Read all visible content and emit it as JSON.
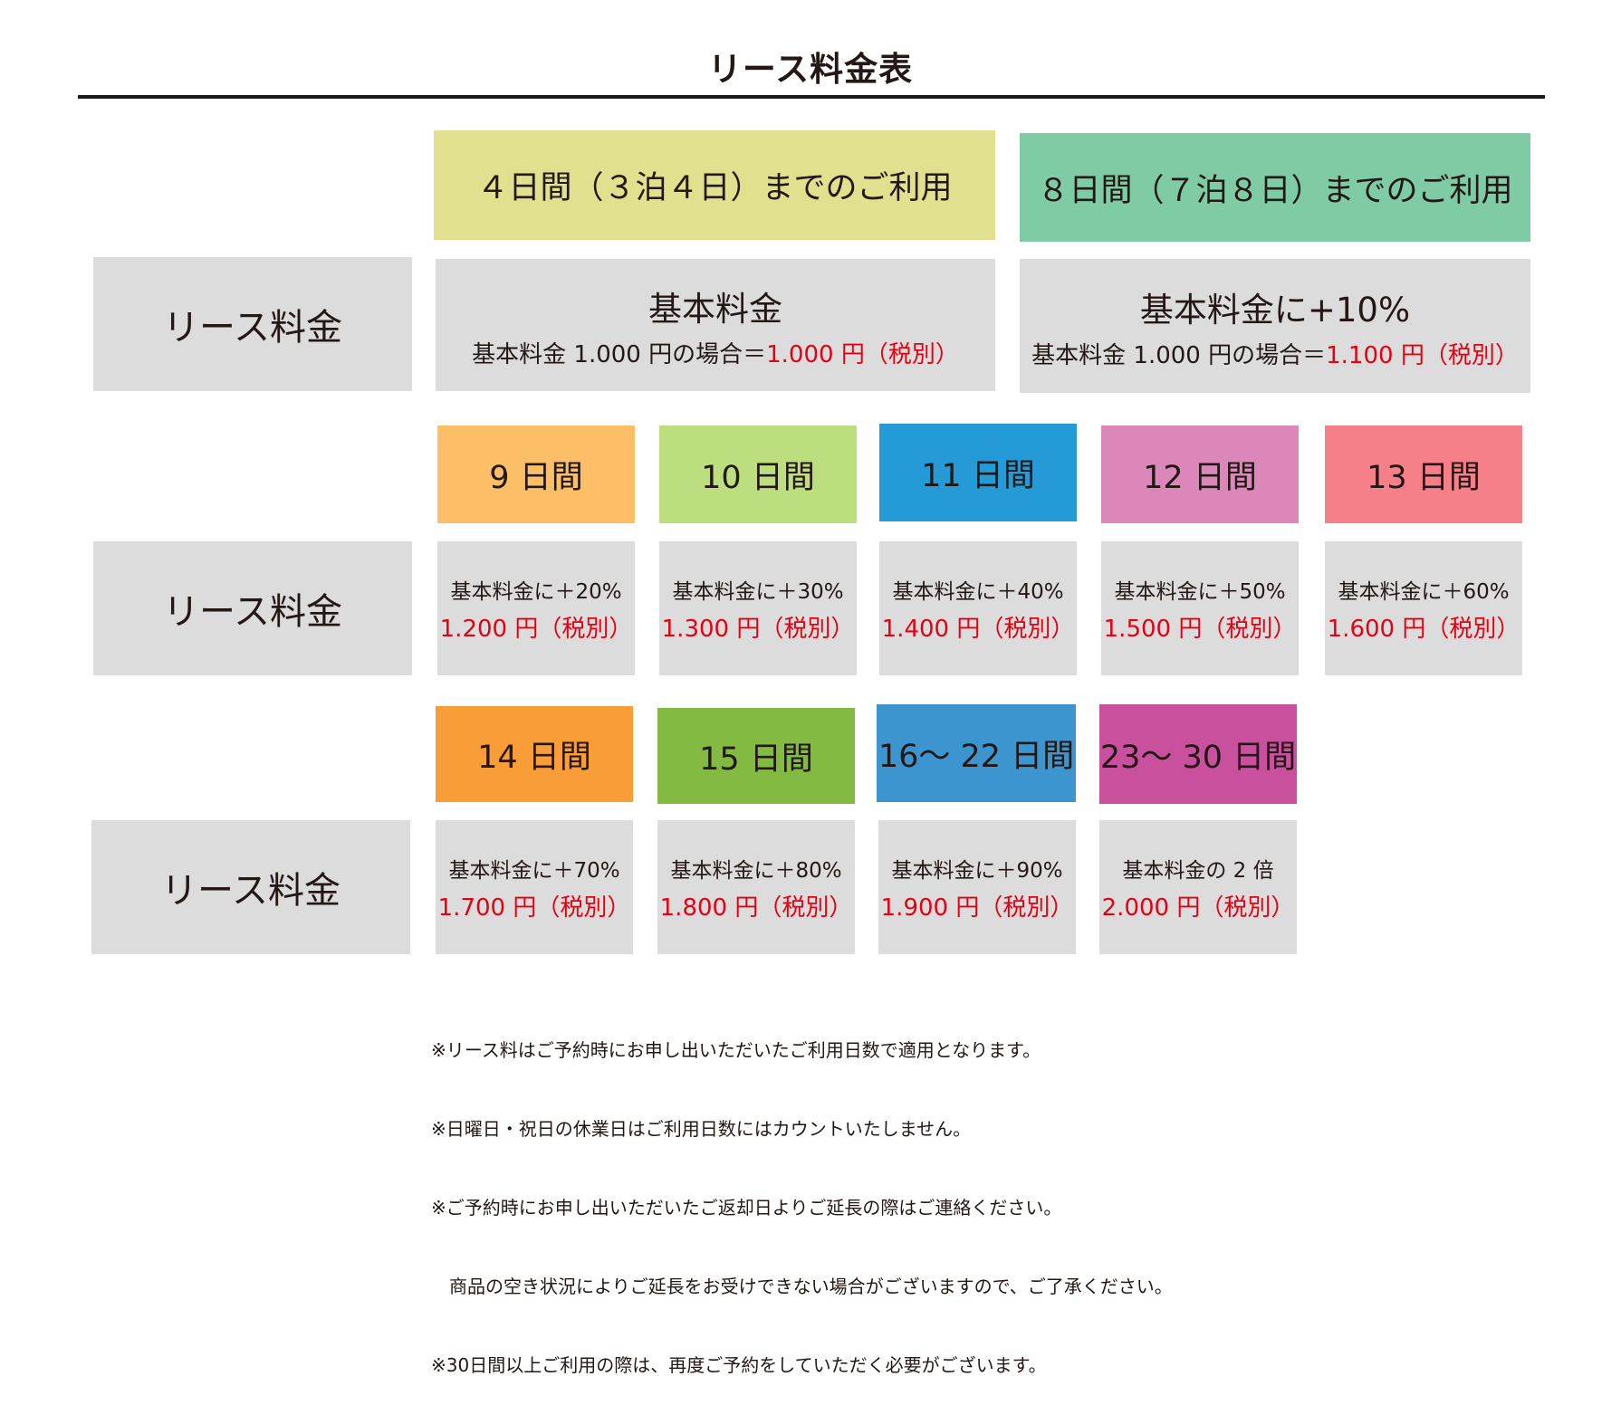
{
  "title": "リース料金表",
  "row_label": "リース料金",
  "tier1": {
    "header": "４日間（３泊４日）までのご利用",
    "main": "基本料金",
    "example_prefix": "基本料金 1.000 円の場合＝",
    "example_price": "1.000 円（税別）",
    "color": "#e0e08e"
  },
  "tier2": {
    "header": "８日間（７泊８日）までのご利用",
    "main": "基本料金に+10%",
    "example_prefix": "基本料金 1.000 円の場合＝",
    "example_price": "1.100 円（税別）",
    "color": "#7fcba4"
  },
  "row2": [
    {
      "header": "9 日間",
      "rate": "基本料金に＋20%",
      "price": "1.200 円（税別）",
      "color": "#fcbf67"
    },
    {
      "header": "10 日間",
      "rate": "基本料金に＋30%",
      "price": "1.300 円（税別）",
      "color": "#bdde7e"
    },
    {
      "header": "11 日間",
      "rate": "基本料金に＋40%",
      "price": "1.400 円（税別）",
      "color": "#249bd7"
    },
    {
      "header": "12 日間",
      "rate": "基本料金に＋50%",
      "price": "1.500 円（税別）",
      "color": "#dc87b9"
    },
    {
      "header": "13 日間",
      "rate": "基本料金に＋60%",
      "price": "1.600 円（税別）",
      "color": "#f58089"
    }
  ],
  "row3": [
    {
      "header": "14 日間",
      "rate": "基本料金に＋70%",
      "price": "1.700 円（税別）",
      "color": "#f99d38"
    },
    {
      "header": "15 日間",
      "rate": "基本料金に＋80%",
      "price": "1.800 円（税別）",
      "color": "#82ba42"
    },
    {
      "header": "16〜 22 日間",
      "rate": "基本料金に＋90%",
      "price": "1.900 円（税別）",
      "color": "#3d95d0"
    },
    {
      "header": "23〜 30 日間",
      "rate": "基本料金の 2 倍",
      "price": "2.000 円（税別）",
      "color": "#c8509d"
    }
  ],
  "notes": [
    "※リース料はご予約時にお申し出いただいたご利用日数で適用となります。",
    "※日曜日・祝日の休業日はご利用日数にはカウントいたしません。",
    "※ご予約時にお申し出いただいたご返却日よりご延長の際はご連絡ください。",
    "　商品の空き状況によりご延長をお受けできない場合がございますので、ご了承ください。",
    "※30日間以上ご利用の際は、再度ご予約をしていただく必要がございます。"
  ]
}
